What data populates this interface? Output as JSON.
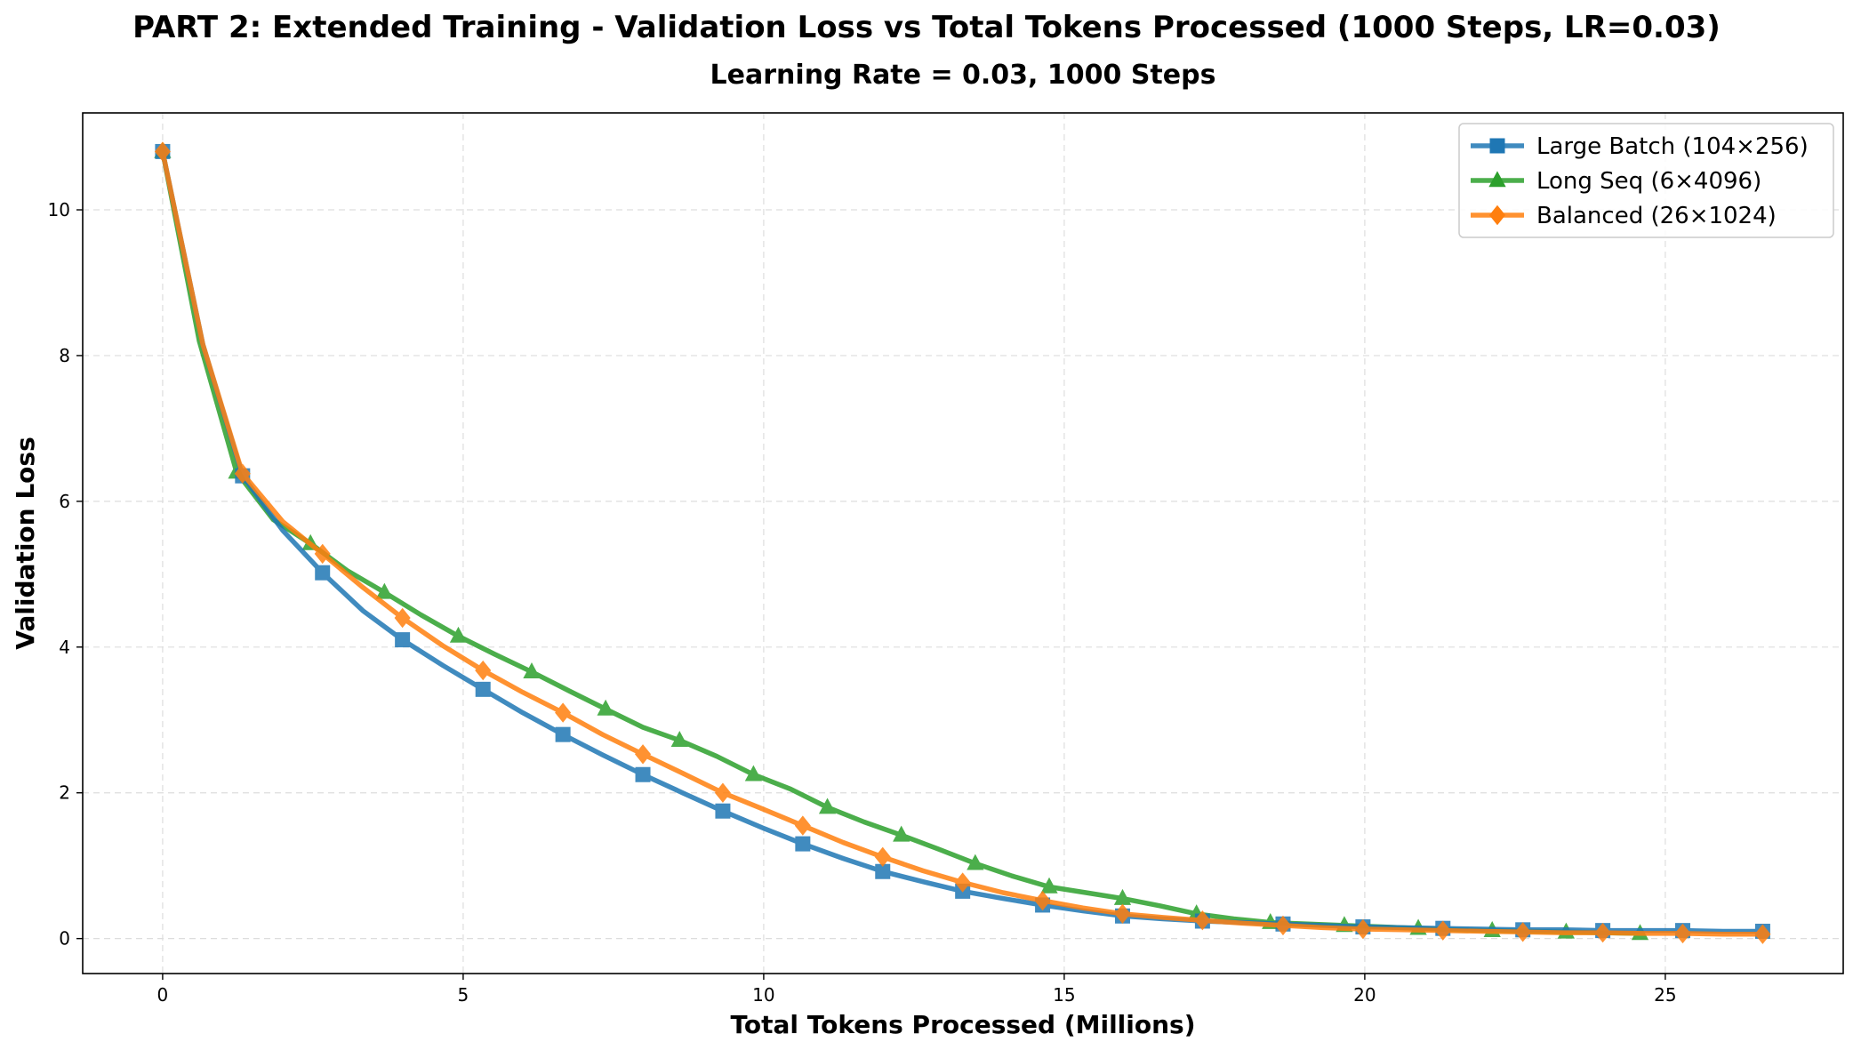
{
  "chart_data": {
    "type": "line",
    "title": "PART 2: Extended Training - Validation Loss vs Total Tokens Processed (1000 Steps, LR=0.03)",
    "subtitle": "Learning Rate = 0.03, 1000 Steps",
    "xlabel": "Total Tokens Processed (Millions)",
    "ylabel": "Validation Loss",
    "xlim": [
      -1.33,
      27.96
    ],
    "ylim": [
      -0.48,
      11.33
    ],
    "xticks": [
      0,
      5,
      10,
      15,
      20,
      25
    ],
    "yticks": [
      0,
      2,
      4,
      6,
      8,
      10
    ],
    "grid": true,
    "legend_position": "top-right",
    "series": [
      {
        "name": "Large Batch (104×256)",
        "color": "#1f77b4",
        "marker": "square",
        "x": [
          0,
          0.67,
          1.33,
          2.0,
          2.66,
          3.33,
          3.99,
          4.66,
          5.33,
          5.99,
          6.66,
          7.32,
          7.99,
          8.65,
          9.32,
          9.98,
          10.65,
          11.32,
          11.98,
          12.65,
          13.31,
          13.98,
          14.64,
          15.31,
          15.97,
          16.64,
          17.3,
          17.97,
          18.64,
          19.3,
          19.97,
          20.63,
          21.3,
          21.96,
          22.63,
          23.3,
          23.96,
          24.63,
          25.29,
          25.96,
          26.62
        ],
        "y": [
          10.8,
          8.15,
          6.35,
          5.6,
          5.02,
          4.5,
          4.1,
          3.75,
          3.42,
          3.1,
          2.8,
          2.52,
          2.25,
          2.0,
          1.75,
          1.52,
          1.3,
          1.1,
          0.92,
          0.78,
          0.65,
          0.55,
          0.46,
          0.38,
          0.31,
          0.27,
          0.24,
          0.22,
          0.2,
          0.18,
          0.16,
          0.15,
          0.14,
          0.13,
          0.12,
          0.12,
          0.11,
          0.11,
          0.11,
          0.1,
          0.1
        ]
      },
      {
        "name": "Long Seq (6×4096)",
        "color": "#2ca02c",
        "marker": "triangle",
        "x": [
          0,
          0.61,
          1.23,
          1.84,
          2.46,
          3.07,
          3.69,
          4.3,
          4.92,
          5.53,
          6.14,
          6.76,
          7.37,
          7.99,
          8.6,
          9.22,
          9.83,
          10.45,
          11.06,
          11.67,
          12.29,
          12.9,
          13.52,
          14.13,
          14.75,
          15.36,
          15.97,
          16.59,
          17.2,
          17.82,
          18.43,
          19.05,
          19.66,
          20.28,
          20.89,
          21.5,
          22.12,
          22.73,
          23.35,
          23.96,
          24.58
        ],
        "y": [
          10.8,
          8.2,
          6.4,
          5.75,
          5.42,
          5.05,
          4.75,
          4.44,
          4.15,
          3.9,
          3.66,
          3.4,
          3.15,
          2.9,
          2.72,
          2.5,
          2.25,
          2.05,
          1.8,
          1.6,
          1.42,
          1.23,
          1.03,
          0.86,
          0.71,
          0.63,
          0.55,
          0.45,
          0.34,
          0.27,
          0.22,
          0.2,
          0.18,
          0.16,
          0.14,
          0.12,
          0.11,
          0.1,
          0.09,
          0.08,
          0.07
        ]
      },
      {
        "name": "Balanced (26×1024)",
        "color": "#ff7f0e",
        "marker": "diamond",
        "x": [
          0,
          0.67,
          1.33,
          2.0,
          2.66,
          3.33,
          3.99,
          4.66,
          5.33,
          5.99,
          6.66,
          7.32,
          7.99,
          8.65,
          9.32,
          9.98,
          10.65,
          11.32,
          11.98,
          12.65,
          13.31,
          13.98,
          14.64,
          15.31,
          15.97,
          16.64,
          17.3,
          17.97,
          18.64,
          19.3,
          19.97,
          20.63,
          21.3,
          21.96,
          22.63,
          23.3,
          23.96,
          24.63,
          25.29,
          25.96,
          26.62
        ],
        "y": [
          10.8,
          8.15,
          6.38,
          5.72,
          5.28,
          4.82,
          4.4,
          4.02,
          3.68,
          3.38,
          3.1,
          2.8,
          2.53,
          2.27,
          2.0,
          1.78,
          1.55,
          1.32,
          1.12,
          0.93,
          0.77,
          0.63,
          0.52,
          0.42,
          0.34,
          0.29,
          0.25,
          0.21,
          0.18,
          0.15,
          0.13,
          0.12,
          0.11,
          0.1,
          0.09,
          0.08,
          0.08,
          0.07,
          0.07,
          0.06,
          0.06
        ]
      }
    ]
  }
}
